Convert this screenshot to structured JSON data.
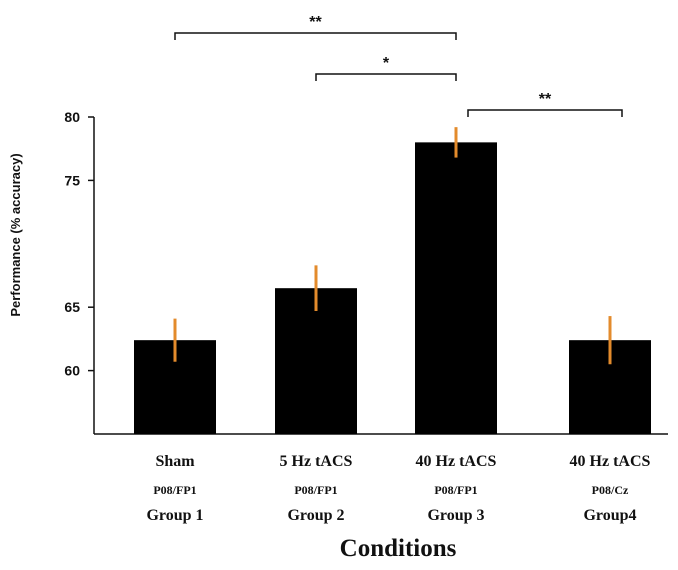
{
  "chart_data": {
    "type": "bar",
    "categories": [
      "Sham",
      "5 Hz tACS",
      "40 Hz tACS",
      "40 Hz tACS"
    ],
    "electrodes": [
      "P08/FP1",
      "P08/FP1",
      "P08/FP1",
      "P08/Cz"
    ],
    "groups": [
      "Group 1",
      "Group 2",
      "Group 3",
      "Group4"
    ],
    "values": [
      62.4,
      66.5,
      78.0,
      62.4
    ],
    "errors": [
      1.7,
      1.8,
      1.2,
      1.9
    ],
    "ylabel": "Performance (% accuracy)",
    "xlabel": "Conditions",
    "y_ticks": [
      {
        "label": "60",
        "value": 60
      },
      {
        "label": "65",
        "value": 65
      },
      {
        "label": "75",
        "value": 75
      },
      {
        "label": "80",
        "value": 80
      }
    ],
    "ylim": [
      55,
      80
    ],
    "grid": false,
    "bar_color": "#000000",
    "error_color": "#e38b2c",
    "significance": [
      {
        "from": 0,
        "to": 2,
        "label": "**"
      },
      {
        "from": 1,
        "to": 2,
        "label": "*"
      },
      {
        "from": 2,
        "to": 3,
        "label": "**"
      }
    ]
  }
}
